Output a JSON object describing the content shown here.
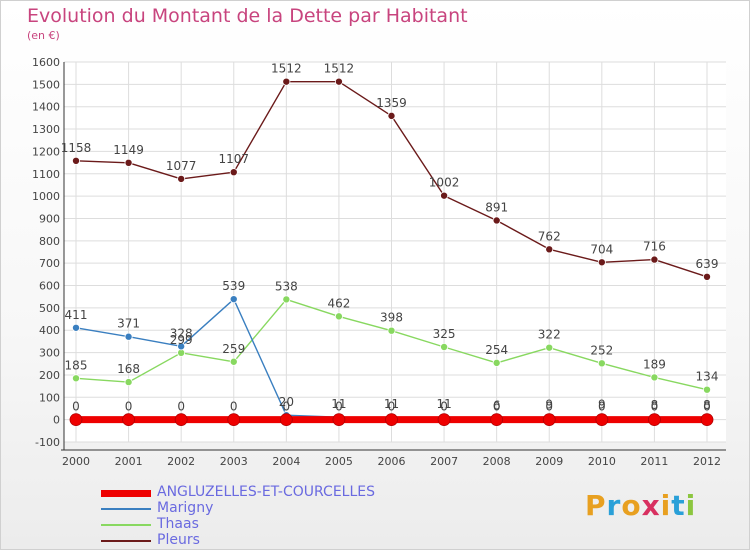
{
  "title": "Evolution du Montant de la Dette par Habitant",
  "subtitle": "(en €)",
  "logo": {
    "text": "Proxiti",
    "colors": [
      "#e8a020",
      "#2aa0d8",
      "#e8a020",
      "#d83060",
      "#e8a020",
      "#2aa0d8",
      "#8cc63f"
    ]
  },
  "chart_data": {
    "type": "line",
    "x": [
      "2000",
      "2001",
      "2002",
      "2003",
      "2004",
      "2005",
      "2006",
      "2007",
      "2008",
      "2009",
      "2010",
      "2011",
      "2012"
    ],
    "ylim": [
      -100,
      1600
    ],
    "yticks": [
      -100,
      0,
      100,
      200,
      300,
      400,
      500,
      600,
      700,
      800,
      900,
      1000,
      1100,
      1200,
      1300,
      1400,
      1500,
      1600
    ],
    "grid": true,
    "legend_position": "bottom-left",
    "series": [
      {
        "name": "ANGLUZELLES-ET-COURCELLES",
        "color": "#ee0000",
        "values": [
          0,
          0,
          0,
          0,
          0,
          0,
          0,
          0,
          0,
          0,
          0,
          0,
          0
        ],
        "labels": [
          "0",
          "0",
          "0",
          "0",
          "0",
          "0",
          "0",
          "0",
          "0",
          "0",
          "0",
          "0",
          "0"
        ]
      },
      {
        "name": "Marigny",
        "color": "#3a7fc0",
        "values": [
          411,
          371,
          328,
          539,
          20,
          11,
          11,
          11,
          6,
          9,
          9,
          8,
          8
        ],
        "labels": [
          "411",
          "371",
          "328",
          "539",
          "20",
          "11",
          "11",
          "11",
          "6",
          "9",
          "9",
          "8",
          "8"
        ]
      },
      {
        "name": "Thaas",
        "color": "#88d860",
        "values": [
          185,
          168,
          299,
          259,
          538,
          462,
          398,
          325,
          254,
          322,
          252,
          189,
          134
        ],
        "labels": [
          "185",
          "168",
          "299",
          "259",
          "538",
          "462",
          "398",
          "325",
          "254",
          "322",
          "252",
          "189",
          "134"
        ]
      },
      {
        "name": "Pleurs",
        "color": "#6b1a1a",
        "values": [
          1158,
          1149,
          1077,
          1107,
          1512,
          1512,
          1359,
          1002,
          891,
          762,
          704,
          716,
          639
        ],
        "labels": [
          "1158",
          "1149",
          "1077",
          "1107",
          "1512",
          "1512",
          "1359",
          "1002",
          "891",
          "762",
          "704",
          "716",
          "639"
        ]
      }
    ]
  }
}
